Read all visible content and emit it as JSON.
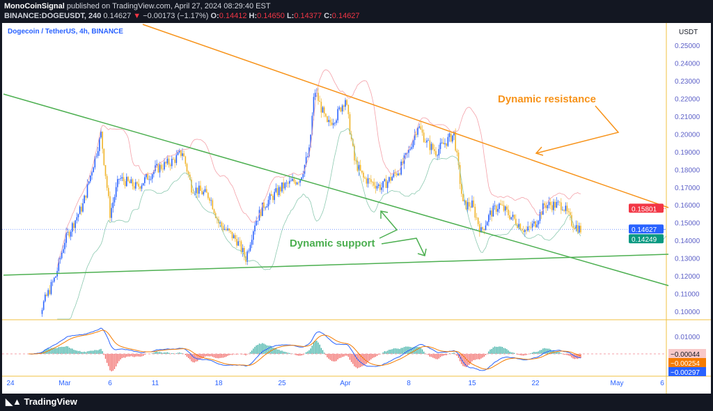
{
  "header": {
    "publisher": "MonoCoinSignal",
    "published_text": "published on TradingView.com, April 27, 2024 08:29:40 EST",
    "symbol": "BINANCE:DOGEUSDT, 240",
    "last": "0.14627",
    "change": "−0.00173 (−1.17%)",
    "open_label": "O:",
    "open": "0.14412",
    "high_label": "H:",
    "high": "0.14650",
    "low_label": "L:",
    "low": "0.14377",
    "close_label": "C:",
    "close": "0.14627"
  },
  "footer": {
    "brand": "TradingView"
  },
  "chart_data": {
    "type": "candlestick",
    "title": "Dogecoin / TetherUS, 4h, BINANCE",
    "currency": "USDT",
    "yticks": [
      "0.25000",
      "0.24000",
      "0.23000",
      "0.22000",
      "0.21000",
      "0.20000",
      "0.19000",
      "0.18000",
      "0.17000",
      "0.16000",
      "0.15000",
      "0.14000",
      "0.13000",
      "0.12000",
      "0.11000",
      "0.10000"
    ],
    "ylim": [
      0.095,
      0.26
    ],
    "xticks": [
      {
        "label": "24",
        "day": 0
      },
      {
        "label": "Mar",
        "day": 6
      },
      {
        "label": "6",
        "day": 11
      },
      {
        "label": "11",
        "day": 16
      },
      {
        "label": "18",
        "day": 23
      },
      {
        "label": "25",
        "day": 30
      },
      {
        "label": "Apr",
        "day": 37
      },
      {
        "label": "8",
        "day": 44
      },
      {
        "label": "15",
        "day": 51
      },
      {
        "label": "22",
        "day": 58
      },
      {
        "label": "May",
        "day": 67
      },
      {
        "label": "6",
        "day": 72
      }
    ],
    "price_path": [
      [
        2,
        0.094
      ],
      [
        3,
        0.097
      ],
      [
        5,
        0.12
      ],
      [
        6,
        0.14
      ],
      [
        8,
        0.16
      ],
      [
        10,
        0.2
      ],
      [
        11,
        0.155
      ],
      [
        12,
        0.175
      ],
      [
        14,
        0.17
      ],
      [
        16,
        0.18
      ],
      [
        18,
        0.185
      ],
      [
        19,
        0.19
      ],
      [
        20,
        0.17
      ],
      [
        22,
        0.165
      ],
      [
        23,
        0.15
      ],
      [
        25,
        0.14
      ],
      [
        26,
        0.13
      ],
      [
        27,
        0.15
      ],
      [
        28,
        0.16
      ],
      [
        30,
        0.17
      ],
      [
        32,
        0.175
      ],
      [
        33,
        0.19
      ],
      [
        33.6,
        0.225
      ],
      [
        35,
        0.205
      ],
      [
        36,
        0.21
      ],
      [
        37,
        0.22
      ],
      [
        38,
        0.185
      ],
      [
        39,
        0.175
      ],
      [
        41,
        0.17
      ],
      [
        43,
        0.18
      ],
      [
        44,
        0.19
      ],
      [
        45,
        0.205
      ],
      [
        46,
        0.195
      ],
      [
        47,
        0.19
      ],
      [
        48,
        0.195
      ],
      [
        49,
        0.2
      ],
      [
        50,
        0.16
      ],
      [
        51,
        0.16
      ],
      [
        52,
        0.145
      ],
      [
        53,
        0.155
      ],
      [
        54,
        0.16
      ],
      [
        55,
        0.155
      ],
      [
        56,
        0.15
      ],
      [
        57,
        0.145
      ],
      [
        58,
        0.15
      ],
      [
        59,
        0.16
      ],
      [
        60,
        0.16
      ],
      [
        61,
        0.16
      ],
      [
        62,
        0.15
      ],
      [
        63,
        0.146
      ]
    ],
    "price_labels": [
      {
        "value": "0.15801",
        "price": 0.158,
        "color": "#f23645"
      },
      {
        "value": "0.14627",
        "price": 0.14627,
        "color": "#2962ff"
      },
      {
        "value": "0.14249",
        "price": 0.1425,
        "color": "#089981"
      }
    ],
    "macd": {
      "yticks": [
        "0.01000"
      ],
      "labels": [
        {
          "value": "−0.00044",
          "color": "#f8c8c8",
          "text": "#131722"
        },
        {
          "value": "−0.00254",
          "color": "#f57c00",
          "text": "#fff"
        },
        {
          "value": "−0.00297",
          "color": "#2962ff",
          "text": "#fff"
        }
      ]
    },
    "annotations": [
      {
        "text": "Dynamic resistance",
        "color": "#f7931a"
      },
      {
        "text": "Dynamic support",
        "color": "#4caf50"
      }
    ],
    "lines": {
      "resistance_color": "#f7931a",
      "support_color": "#4caf50"
    }
  }
}
